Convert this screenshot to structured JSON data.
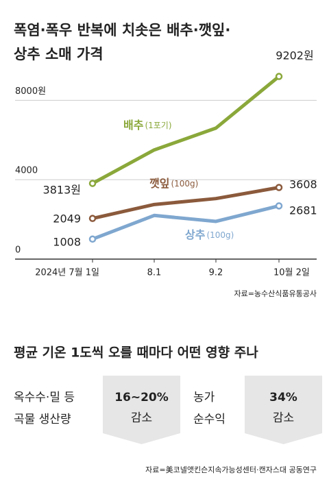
{
  "chart_data": {
    "type": "line",
    "title": [
      "폭염·폭우 반복에 치솟은 배추·깻잎·",
      "상추 소매 가격"
    ],
    "categories": [
      "2024년 7월 1일",
      "8.1",
      "9.2",
      "10월 2일"
    ],
    "series": [
      {
        "name": "배추",
        "unit": "(1포기)",
        "color": "#8aa83a",
        "values": [
          3813,
          5500,
          6600,
          9202
        ],
        "value_labels": [
          "3813원",
          null,
          null,
          "9202원"
        ]
      },
      {
        "name": "깻잎",
        "unit": "(100g)",
        "color": "#8b5a3c",
        "values": [
          2049,
          2750,
          3050,
          3608
        ]
      },
      {
        "name": "상추",
        "unit": "(100g)",
        "color": "#7fa7cf",
        "values": [
          1008,
          2200,
          1900,
          2681
        ]
      }
    ],
    "ylim": [
      0,
      9600
    ],
    "yticks": [
      0,
      4000,
      {
        "value": 8000,
        "label": "8000원"
      }
    ],
    "grid": true,
    "source": "자료=농수산식품유통공사"
  },
  "panel": {
    "title": "평균 기온 1도씩 오를 때마다 어떤 영향 주나",
    "items": [
      {
        "label": [
          "옥수수·밀 등",
          "곡물 생산량"
        ],
        "value": [
          "16~20%",
          "감소"
        ]
      },
      {
        "label": [
          "농가",
          "순수익"
        ],
        "value": [
          "34%",
          "감소"
        ]
      }
    ],
    "source": "자료=美코넬앳킨슨지속가능성센터·캔자스대 공동연구"
  }
}
